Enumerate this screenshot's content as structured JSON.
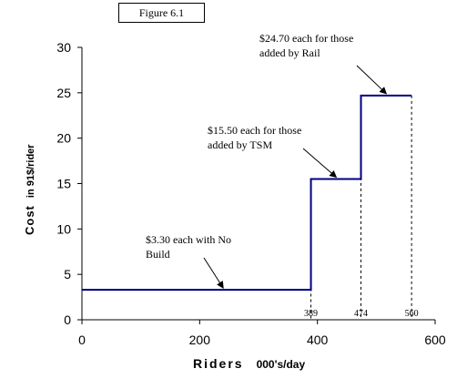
{
  "figure_label": "Figure 6.1",
  "chart_data": {
    "type": "line",
    "title": "",
    "xlabel": "Riders",
    "xlabel_unit": "000's/day",
    "ylabel": "Cost",
    "ylabel_unit": "in 91$/rider",
    "xlim": [
      0,
      600
    ],
    "ylim": [
      0,
      30
    ],
    "xticks": [
      0,
      200,
      400,
      600
    ],
    "yticks": [
      0,
      5,
      10,
      15,
      20,
      25,
      30
    ],
    "grid": false,
    "series": [
      {
        "color": "#000080",
        "x": [
          0,
          389,
          389,
          474,
          474,
          560
        ],
        "y": [
          3.3,
          3.3,
          15.5,
          15.5,
          24.7,
          24.7
        ]
      }
    ],
    "markers": [
      {
        "x": 389,
        "label": "389",
        "y_top": 15.5
      },
      {
        "x": 474,
        "label": "474",
        "y_top": 24.7
      },
      {
        "x": 560,
        "label": "560",
        "y_top": 24.7
      }
    ],
    "annotations": [
      {
        "lines": [
          "$3.30 each with No",
          "Build"
        ],
        "arrow_to": [
          240,
          3.3
        ]
      },
      {
        "lines": [
          "$15.50 each for those",
          "added by TSM"
        ],
        "arrow_to": [
          432,
          15.5
        ]
      },
      {
        "lines": [
          "$24.70 each for those",
          "added by Rail"
        ],
        "arrow_to": [
          517,
          24.7
        ]
      }
    ]
  }
}
